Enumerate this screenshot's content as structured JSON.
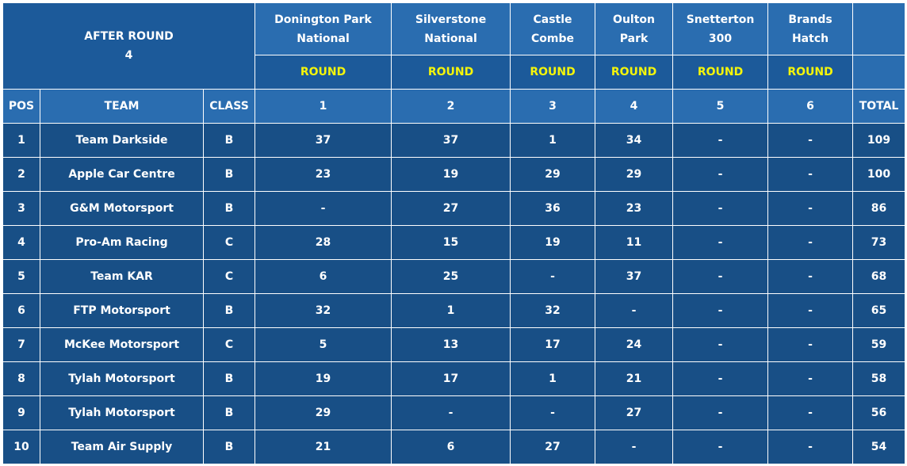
{
  "heading": {
    "after_round_label": "AFTER ROUND",
    "after_round_number": "4"
  },
  "venues": [
    {
      "line1": "Donington Park",
      "line2": "National"
    },
    {
      "line1": "Silverstone",
      "line2": "National"
    },
    {
      "line1": "Castle",
      "line2": "Combe"
    },
    {
      "line1": "Oulton",
      "line2": "Park"
    },
    {
      "line1": "Snetterton",
      "line2": "300"
    },
    {
      "line1": "Brands",
      "line2": "Hatch"
    }
  ],
  "round_label": "ROUND",
  "columns": {
    "pos": "POS",
    "team": "TEAM",
    "class": "CLASS",
    "rounds": [
      "1",
      "2",
      "3",
      "4",
      "5",
      "6"
    ],
    "total": "TOTAL"
  },
  "rows": [
    {
      "pos": "1",
      "team": "Team Darkside",
      "class": "B",
      "r": [
        "37",
        "37",
        "1",
        "34",
        "-",
        "-"
      ],
      "total": "109"
    },
    {
      "pos": "2",
      "team": "Apple Car Centre",
      "class": "B",
      "r": [
        "23",
        "19",
        "29",
        "29",
        "-",
        "-"
      ],
      "total": "100"
    },
    {
      "pos": "3",
      "team": "G&M Motorsport",
      "class": "B",
      "r": [
        "-",
        "27",
        "36",
        "23",
        "-",
        "-"
      ],
      "total": "86"
    },
    {
      "pos": "4",
      "team": "Pro-Am Racing",
      "class": "C",
      "r": [
        "28",
        "15",
        "19",
        "11",
        "-",
        "-"
      ],
      "total": "73"
    },
    {
      "pos": "5",
      "team": "Team KAR",
      "class": "C",
      "r": [
        "6",
        "25",
        "-",
        "37",
        "-",
        "-"
      ],
      "total": "68"
    },
    {
      "pos": "6",
      "team": "FTP Motorsport",
      "class": "B",
      "r": [
        "32",
        "1",
        "32",
        "-",
        "-",
        "-"
      ],
      "total": "65"
    },
    {
      "pos": "7",
      "team": "McKee Motorsport",
      "class": "C",
      "r": [
        "5",
        "13",
        "17",
        "24",
        "-",
        "-"
      ],
      "total": "59"
    },
    {
      "pos": "8",
      "team": "Tylah Motorsport",
      "class": "B",
      "r": [
        "19",
        "17",
        "1",
        "21",
        "-",
        "-"
      ],
      "total": "58"
    },
    {
      "pos": "9",
      "team": "Tylah Motorsport",
      "class": "B",
      "r": [
        "29",
        "-",
        "-",
        "27",
        "-",
        "-"
      ],
      "total": "56"
    },
    {
      "pos": "10",
      "team": "Team Air Supply",
      "class": "B",
      "r": [
        "21",
        "6",
        "27",
        "-",
        "-",
        "-"
      ],
      "total": "54"
    }
  ],
  "colors": {
    "header_blue": "#2a6db0",
    "dark_blue": "#1c5a9a",
    "row_blue": "#184f86",
    "highlight_yellow": "#f5f50a",
    "text_white": "#ffffff"
  }
}
